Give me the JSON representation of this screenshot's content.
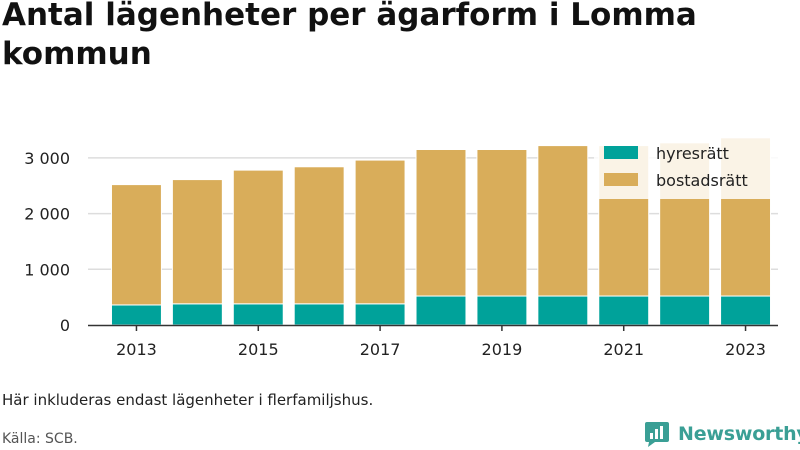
{
  "title": "Antal lägenheter per ägarform i Lomma kommun",
  "note": "Här inkluderas endast lägenheter i flerfamiljshus.",
  "source": "Källa: SCB.",
  "brand": {
    "name": "Newsworthy",
    "icon": "newsworthy-logo-icon",
    "color": "#3a9f95"
  },
  "chart_data": {
    "type": "bar",
    "stacked": true,
    "categories": [
      "2013",
      "2014",
      "2015",
      "2016",
      "2017",
      "2018",
      "2019",
      "2020",
      "2021",
      "2022",
      "2023"
    ],
    "x_tick_labels": [
      "2013",
      "2015",
      "2017",
      "2019",
      "2021",
      "2023"
    ],
    "series": [
      {
        "name": "hyresrätt",
        "color": "#00a29a",
        "values": [
          360,
          380,
          380,
          380,
          380,
          520,
          520,
          520,
          520,
          520,
          520
        ]
      },
      {
        "name": "bostadsrätt",
        "color": "#d9ad5a",
        "values": [
          2160,
          2230,
          2400,
          2460,
          2580,
          2630,
          2630,
          2700,
          2700,
          2750,
          2840
        ]
      }
    ],
    "ylim": [
      0,
      3500
    ],
    "y_ticks": [
      0,
      1000,
      2000,
      3000
    ],
    "y_tick_labels": [
      "0",
      "1 000",
      "2 000",
      "3 000"
    ],
    "grid": "horizontal",
    "legend": "top-right",
    "xlabel": "",
    "ylabel": ""
  }
}
